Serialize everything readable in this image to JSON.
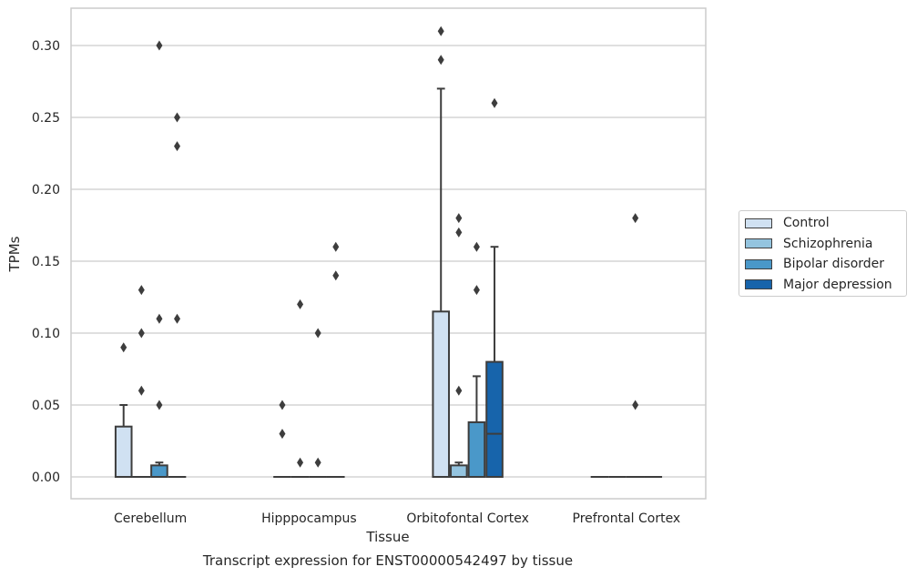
{
  "chart_data": {
    "type": "box",
    "xlabel": "Tissue",
    "ylabel": "TPMs",
    "ylim": [
      -0.015,
      0.325
    ],
    "yticks": [
      0.0,
      0.05,
      0.1,
      0.15,
      0.2,
      0.25,
      0.3
    ],
    "ytick_labels": [
      "0.00",
      "0.05",
      "0.10",
      "0.15",
      "0.20",
      "0.25",
      "0.30"
    ],
    "grid": "horizontal",
    "legend_position": "right",
    "categories": [
      "Cerebellum",
      "Hipppocampus",
      "Orbitofontal Cortex",
      "Prefrontal Cortex"
    ],
    "series": [
      {
        "name": "Control",
        "color": "#d0e1f2",
        "boxes": [
          {
            "q1": 0.0,
            "median": 0.0,
            "q3": 0.035,
            "whislo": 0.0,
            "whishi": 0.05,
            "fliers": [
              0.09
            ]
          },
          {
            "q1": 0.0,
            "median": 0.0,
            "q3": 0.0,
            "whislo": 0.0,
            "whishi": 0.0,
            "fliers": [
              0.03,
              0.05
            ]
          },
          {
            "q1": 0.0,
            "median": 0.0,
            "q3": 0.115,
            "whislo": 0.0,
            "whishi": 0.27,
            "fliers": [
              0.29,
              0.31
            ]
          },
          {
            "q1": 0.0,
            "median": 0.0,
            "q3": 0.0,
            "whislo": 0.0,
            "whishi": 0.0,
            "fliers": []
          }
        ]
      },
      {
        "name": "Schizophrenia",
        "color": "#94c4df",
        "boxes": [
          {
            "q1": 0.0,
            "median": 0.0,
            "q3": 0.0,
            "whislo": 0.0,
            "whishi": 0.0,
            "fliers": [
              0.06,
              0.1,
              0.13
            ]
          },
          {
            "q1": 0.0,
            "median": 0.0,
            "q3": 0.0,
            "whislo": 0.0,
            "whishi": 0.0,
            "fliers": [
              0.01,
              0.12
            ]
          },
          {
            "q1": 0.0,
            "median": 0.0,
            "q3": 0.008,
            "whislo": 0.0,
            "whishi": 0.01,
            "fliers": [
              0.06,
              0.17,
              0.18
            ]
          },
          {
            "q1": 0.0,
            "median": 0.0,
            "q3": 0.0,
            "whislo": 0.0,
            "whishi": 0.0,
            "fliers": []
          }
        ]
      },
      {
        "name": "Bipolar disorder",
        "color": "#4a98c9",
        "boxes": [
          {
            "q1": 0.0,
            "median": 0.0,
            "q3": 0.008,
            "whislo": 0.0,
            "whishi": 0.01,
            "fliers": [
              0.05,
              0.11,
              0.3
            ]
          },
          {
            "q1": 0.0,
            "median": 0.0,
            "q3": 0.0,
            "whislo": 0.0,
            "whishi": 0.0,
            "fliers": [
              0.01,
              0.1
            ]
          },
          {
            "q1": 0.0,
            "median": 0.0,
            "q3": 0.038,
            "whislo": 0.0,
            "whishi": 0.07,
            "fliers": [
              0.13,
              0.16
            ]
          },
          {
            "q1": 0.0,
            "median": 0.0,
            "q3": 0.0,
            "whislo": 0.0,
            "whishi": 0.0,
            "fliers": [
              0.05,
              0.18
            ]
          }
        ]
      },
      {
        "name": "Major depression",
        "color": "#1764ab",
        "boxes": [
          {
            "q1": 0.0,
            "median": 0.0,
            "q3": 0.0,
            "whislo": 0.0,
            "whishi": 0.0,
            "fliers": [
              0.11,
              0.23,
              0.25
            ]
          },
          {
            "q1": 0.0,
            "median": 0.0,
            "q3": 0.0,
            "whislo": 0.0,
            "whishi": 0.0,
            "fliers": [
              0.14,
              0.16
            ]
          },
          {
            "q1": 0.0,
            "median": 0.03,
            "q3": 0.08,
            "whislo": 0.0,
            "whishi": 0.16,
            "fliers": [
              0.26
            ]
          },
          {
            "q1": 0.0,
            "median": 0.0,
            "q3": 0.0,
            "whislo": 0.0,
            "whishi": 0.0,
            "fliers": []
          }
        ]
      }
    ]
  },
  "caption": "Transcript expression for ENST00000542497 by tissue"
}
